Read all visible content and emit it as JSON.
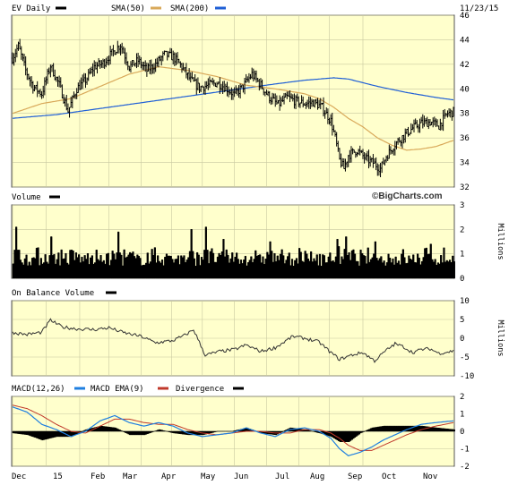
{
  "header": {
    "ticker_label": "EV Daily",
    "sma50_label": "SMA(50)",
    "sma200_label": "SMA(200)",
    "date": "11/23/15"
  },
  "brand": "©BigCharts.com",
  "colors": {
    "panel_bg": "#ffffcc",
    "grid": "#c8c8a0",
    "price": "#000000",
    "sma50": "#d9a95a",
    "sma200": "#1f5fd6",
    "volume": "#000000",
    "obv": "#333333",
    "macd": "#1f7fe0",
    "macd_ema": "#c0392b",
    "divergence": "#000000"
  },
  "chart_data": [
    {
      "type": "ohlc",
      "name": "price",
      "title": "EV Daily",
      "yticks": [
        "46",
        "44",
        "42",
        "40",
        "38",
        "36",
        "34",
        "32"
      ],
      "ylim": [
        32,
        46
      ],
      "xlabels": [
        "Dec",
        "15",
        "Feb",
        "Mar",
        "Apr",
        "May",
        "Jun",
        "Jul",
        "Aug",
        "Sep",
        "Oct",
        "Nov"
      ],
      "grid": true,
      "close_keypoints": [
        [
          0,
          42.5
        ],
        [
          4,
          43.5
        ],
        [
          9,
          41.5
        ],
        [
          14,
          40.2
        ],
        [
          20,
          39.6
        ],
        [
          26,
          41.9
        ],
        [
          32,
          40.3
        ],
        [
          38,
          38.2
        ],
        [
          44,
          40.0
        ],
        [
          50,
          40.7
        ],
        [
          56,
          41.8
        ],
        [
          62,
          42.1
        ],
        [
          68,
          42.9
        ],
        [
          74,
          43.6
        ],
        [
          80,
          41.8
        ],
        [
          86,
          42.3
        ],
        [
          92,
          41.5
        ],
        [
          98,
          42.0
        ],
        [
          104,
          42.8
        ],
        [
          110,
          42.6
        ],
        [
          116,
          41.8
        ],
        [
          122,
          40.7
        ],
        [
          128,
          40.1
        ],
        [
          134,
          40.3
        ],
        [
          140,
          40.5
        ],
        [
          146,
          40.1
        ],
        [
          152,
          39.5
        ],
        [
          158,
          40.2
        ],
        [
          164,
          41.2
        ],
        [
          170,
          40.3
        ],
        [
          176,
          39.3
        ],
        [
          182,
          38.7
        ],
        [
          188,
          39.3
        ],
        [
          194,
          39.0
        ],
        [
          200,
          38.8
        ],
        [
          206,
          38.9
        ],
        [
          212,
          38.5
        ],
        [
          218,
          37.4
        ],
        [
          221,
          36.0
        ],
        [
          224,
          34.2
        ],
        [
          227,
          33.5
        ],
        [
          230,
          34.6
        ],
        [
          236,
          35.0
        ],
        [
          242,
          34.3
        ],
        [
          248,
          33.9
        ],
        [
          252,
          33.5
        ],
        [
          256,
          34.5
        ],
        [
          262,
          35.5
        ],
        [
          268,
          36.2
        ],
        [
          274,
          36.8
        ],
        [
          280,
          37.2
        ],
        [
          286,
          37.3
        ],
        [
          292,
          37.0
        ],
        [
          298,
          38.0
        ],
        [
          302,
          38.1
        ]
      ],
      "sma50_keypoints": [
        [
          0,
          38.0
        ],
        [
          20,
          38.8
        ],
        [
          40,
          39.2
        ],
        [
          60,
          40.2
        ],
        [
          80,
          41.2
        ],
        [
          100,
          41.8
        ],
        [
          120,
          41.5
        ],
        [
          140,
          41.0
        ],
        [
          160,
          40.3
        ],
        [
          180,
          40.0
        ],
        [
          200,
          39.6
        ],
        [
          210,
          39.2
        ],
        [
          220,
          38.5
        ],
        [
          230,
          37.6
        ],
        [
          240,
          36.9
        ],
        [
          250,
          36.0
        ],
        [
          260,
          35.4
        ],
        [
          270,
          35.0
        ],
        [
          280,
          35.1
        ],
        [
          290,
          35.3
        ],
        [
          302,
          35.8
        ]
      ],
      "sma200_keypoints": [
        [
          0,
          37.6
        ],
        [
          30,
          37.9
        ],
        [
          60,
          38.4
        ],
        [
          90,
          38.9
        ],
        [
          120,
          39.4
        ],
        [
          150,
          39.9
        ],
        [
          180,
          40.4
        ],
        [
          200,
          40.7
        ],
        [
          220,
          40.9
        ],
        [
          230,
          40.8
        ],
        [
          250,
          40.2
        ],
        [
          270,
          39.7
        ],
        [
          290,
          39.3
        ],
        [
          302,
          39.1
        ]
      ]
    },
    {
      "type": "bar",
      "name": "volume",
      "title": "Volume",
      "ylabel": "Millions",
      "yticks": [
        "3",
        "2",
        "1",
        "0"
      ],
      "ylim": [
        0,
        3
      ],
      "typical_range": [
        0.5,
        1.2
      ],
      "spikes": [
        [
          2,
          2.1
        ],
        [
          26,
          1.7
        ],
        [
          72,
          1.9
        ],
        [
          122,
          2.0
        ],
        [
          132,
          2.1
        ],
        [
          144,
          1.6
        ],
        [
          176,
          1.5
        ],
        [
          222,
          1.6
        ],
        [
          228,
          1.7
        ],
        [
          248,
          1.5
        ],
        [
          286,
          1.4
        ]
      ]
    },
    {
      "type": "line",
      "name": "on_balance_volume",
      "title": "On Balance Volume",
      "ylabel": "Millions",
      "yticks": [
        "10",
        "5",
        "0",
        "-5",
        "-10"
      ],
      "ylim": [
        -10,
        10
      ],
      "keypoints": [
        [
          0,
          1.5
        ],
        [
          10,
          1.0
        ],
        [
          20,
          1.6
        ],
        [
          26,
          4.8
        ],
        [
          34,
          3.0
        ],
        [
          44,
          2.5
        ],
        [
          56,
          2.3
        ],
        [
          66,
          2.8
        ],
        [
          76,
          1.5
        ],
        [
          88,
          0.5
        ],
        [
          98,
          -1.2
        ],
        [
          110,
          -0.6
        ],
        [
          118,
          0.8
        ],
        [
          124,
          2.3
        ],
        [
          132,
          -4.5
        ],
        [
          142,
          -3.5
        ],
        [
          152,
          -3.0
        ],
        [
          160,
          -1.8
        ],
        [
          170,
          -3.5
        ],
        [
          180,
          -2.5
        ],
        [
          192,
          0.5
        ],
        [
          200,
          0.0
        ],
        [
          210,
          -1.0
        ],
        [
          218,
          -3.8
        ],
        [
          224,
          -5.6
        ],
        [
          232,
          -4.5
        ],
        [
          240,
          -3.8
        ],
        [
          248,
          -6.0
        ],
        [
          256,
          -3.2
        ],
        [
          262,
          -1.5
        ],
        [
          268,
          -2.3
        ],
        [
          274,
          -3.8
        ],
        [
          280,
          -3.0
        ],
        [
          286,
          -2.8
        ],
        [
          292,
          -4.0
        ],
        [
          302,
          -3.4
        ]
      ]
    },
    {
      "type": "line",
      "name": "macd",
      "title": "MACD(12,26)",
      "series": [
        {
          "name": "MACD(12,26)",
          "color_key": "macd"
        },
        {
          "name": "MACD EMA(9)",
          "color_key": "macd_ema"
        },
        {
          "name": "Divergence",
          "color_key": "divergence"
        }
      ],
      "yticks": [
        "2",
        "1",
        "0",
        "-1",
        "-2"
      ],
      "ylim": [
        -2,
        2
      ],
      "macd_keypoints": [
        [
          0,
          1.4
        ],
        [
          10,
          1.1
        ],
        [
          20,
          0.4
        ],
        [
          30,
          0.1
        ],
        [
          40,
          -0.3
        ],
        [
          50,
          0.0
        ],
        [
          60,
          0.6
        ],
        [
          70,
          0.9
        ],
        [
          80,
          0.5
        ],
        [
          90,
          0.3
        ],
        [
          100,
          0.5
        ],
        [
          110,
          0.3
        ],
        [
          120,
          -0.1
        ],
        [
          130,
          -0.3
        ],
        [
          140,
          -0.2
        ],
        [
          150,
          -0.1
        ],
        [
          160,
          0.2
        ],
        [
          170,
          -0.1
        ],
        [
          180,
          -0.3
        ],
        [
          190,
          0.1
        ],
        [
          200,
          0.2
        ],
        [
          210,
          0.0
        ],
        [
          218,
          -0.4
        ],
        [
          224,
          -1.0
        ],
        [
          230,
          -1.4
        ],
        [
          238,
          -1.2
        ],
        [
          246,
          -0.9
        ],
        [
          254,
          -0.5
        ],
        [
          262,
          -0.2
        ],
        [
          270,
          0.1
        ],
        [
          280,
          0.4
        ],
        [
          290,
          0.5
        ],
        [
          302,
          0.6
        ]
      ],
      "ema_keypoints": [
        [
          0,
          1.5
        ],
        [
          10,
          1.3
        ],
        [
          20,
          0.9
        ],
        [
          30,
          0.4
        ],
        [
          40,
          0.0
        ],
        [
          50,
          -0.1
        ],
        [
          60,
          0.3
        ],
        [
          70,
          0.7
        ],
        [
          80,
          0.7
        ],
        [
          90,
          0.5
        ],
        [
          100,
          0.4
        ],
        [
          110,
          0.4
        ],
        [
          120,
          0.1
        ],
        [
          130,
          -0.1
        ],
        [
          140,
          -0.2
        ],
        [
          150,
          -0.1
        ],
        [
          160,
          0.0
        ],
        [
          170,
          0.0
        ],
        [
          180,
          -0.1
        ],
        [
          190,
          -0.1
        ],
        [
          200,
          0.1
        ],
        [
          210,
          0.1
        ],
        [
          218,
          -0.1
        ],
        [
          224,
          -0.4
        ],
        [
          230,
          -0.8
        ],
        [
          238,
          -1.1
        ],
        [
          246,
          -1.1
        ],
        [
          254,
          -0.8
        ],
        [
          262,
          -0.5
        ],
        [
          270,
          -0.2
        ],
        [
          280,
          0.1
        ],
        [
          290,
          0.3
        ],
        [
          302,
          0.5
        ]
      ]
    }
  ]
}
